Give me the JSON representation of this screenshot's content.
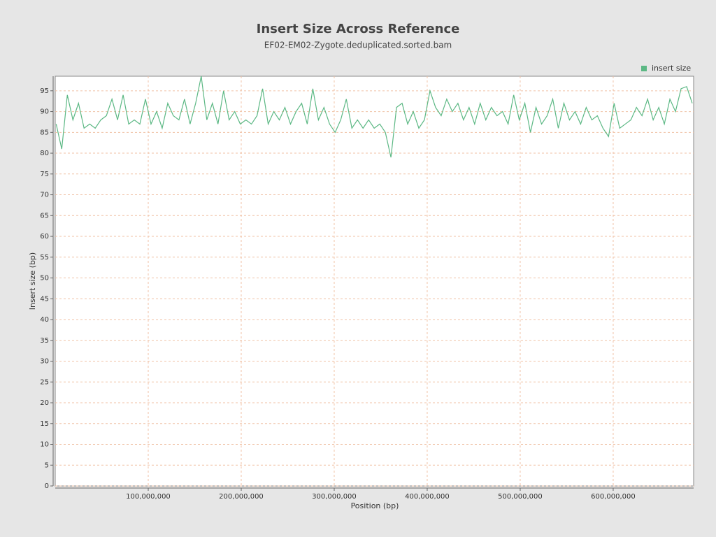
{
  "chart_data": {
    "type": "line",
    "title": "Insert Size Across Reference",
    "subtitle": "EF02-EM02-Zygote.deduplicated.sorted.bam",
    "x_label": "Position (bp)",
    "y_label": "Insert size (bp)",
    "x": [
      1000000,
      7000000,
      13000000,
      19000000,
      25000000,
      31000000,
      37000000,
      43000000,
      49000000,
      55000000,
      61000000,
      67000000,
      73000000,
      79000000,
      85000000,
      91000000,
      97000000,
      103000000,
      109000000,
      115000000,
      121000000,
      127000000,
      133000000,
      139000000,
      145000000,
      151000000,
      157000000,
      163000000,
      169000000,
      175000000,
      181000000,
      187000000,
      193000000,
      199000000,
      205000000,
      211000000,
      217000000,
      223000000,
      229000000,
      235000000,
      241000000,
      247000000,
      253000000,
      259000000,
      265000000,
      271000000,
      277000000,
      283000000,
      289000000,
      295000000,
      301000000,
      307000000,
      313000000,
      319000000,
      325000000,
      331000000,
      337000000,
      343000000,
      349000000,
      355000000,
      361000000,
      367000000,
      373000000,
      379000000,
      385000000,
      391000000,
      397000000,
      403000000,
      409000000,
      415000000,
      421000000,
      427000000,
      433000000,
      439000000,
      445000000,
      451000000,
      457000000,
      463000000,
      469000000,
      475000000,
      481000000,
      487000000,
      493000000,
      499000000,
      505000000,
      511000000,
      517000000,
      523000000,
      529000000,
      535000000,
      541000000,
      547000000,
      553000000,
      559000000,
      565000000,
      571000000,
      577000000,
      583000000,
      589000000,
      595000000,
      601000000,
      607000000,
      613000000,
      619000000,
      625000000,
      631000000,
      637000000,
      643000000,
      649000000,
      655000000,
      661000000,
      667000000,
      673000000,
      679000000,
      685000000
    ],
    "series": [
      {
        "name": "insert size",
        "color": "#5cb884",
        "values": [
          87,
          81,
          94,
          88,
          92,
          86,
          87,
          86,
          88,
          89,
          93,
          88,
          94,
          87,
          88,
          87,
          93,
          87,
          90,
          86,
          92,
          89,
          88,
          93,
          87,
          92,
          98.5,
          88,
          92,
          87,
          95,
          88,
          90,
          87,
          88,
          87,
          89,
          95.5,
          87,
          90,
          88,
          91,
          87,
          90,
          92,
          87,
          95.5,
          88,
          91,
          87,
          85,
          88,
          93,
          86,
          88,
          86,
          88,
          86,
          87,
          85,
          79,
          91,
          92,
          87,
          90,
          86,
          88,
          95,
          91,
          89,
          93,
          90,
          92,
          88,
          91,
          87,
          92,
          88,
          91,
          89,
          90,
          87,
          94,
          88,
          92,
          85,
          91,
          87,
          89,
          93,
          86,
          92,
          88,
          90,
          87,
          91,
          88,
          89,
          86,
          84,
          92,
          86,
          87,
          88,
          91,
          89,
          93,
          88,
          91,
          87,
          93,
          90,
          95.5,
          96,
          92
        ]
      }
    ],
    "xlim": [
      0,
      686500000
    ],
    "ylim": [
      0,
      98.5
    ],
    "xticks": [
      {
        "value": 100000000,
        "label": "100,000,000"
      },
      {
        "value": 200000000,
        "label": "200,000,000"
      },
      {
        "value": 300000000,
        "label": "300,000,000"
      },
      {
        "value": 400000000,
        "label": "400,000,000"
      },
      {
        "value": 500000000,
        "label": "500,000,000"
      },
      {
        "value": 600000000,
        "label": "600,000,000"
      }
    ],
    "yticks": [
      0,
      5,
      10,
      15,
      20,
      25,
      30,
      35,
      40,
      45,
      50,
      55,
      60,
      65,
      70,
      75,
      80,
      85,
      90,
      95
    ],
    "grid": true,
    "legend": "top-right"
  }
}
